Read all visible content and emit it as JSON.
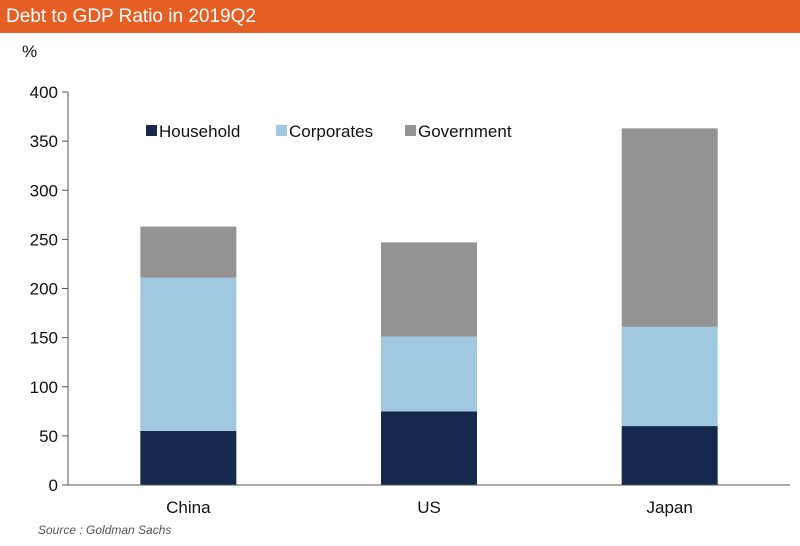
{
  "header": {
    "title": "Debt to GDP Ratio in 2019Q2"
  },
  "chart_data": {
    "type": "bar",
    "stacked": true,
    "title": "Debt to GDP Ratio in 2019Q2",
    "ylabel": "%",
    "xlabel": "",
    "categories": [
      "China",
      "US",
      "Japan"
    ],
    "series": [
      {
        "name": "Household",
        "color": "#14294d",
        "values": [
          55,
          75,
          60
        ]
      },
      {
        "name": "Corporates",
        "color": "#a0c9e1",
        "values": [
          156,
          76,
          101
        ]
      },
      {
        "name": "Government",
        "color": "#939393",
        "values": [
          52,
          96,
          202
        ]
      }
    ],
    "ylim": [
      0,
      400
    ],
    "yticks": [
      0,
      50,
      100,
      150,
      200,
      250,
      300,
      350,
      400
    ],
    "grid": false,
    "legend_position": "top-left"
  },
  "footer": {
    "source": "Source : Goldman Sachs"
  }
}
